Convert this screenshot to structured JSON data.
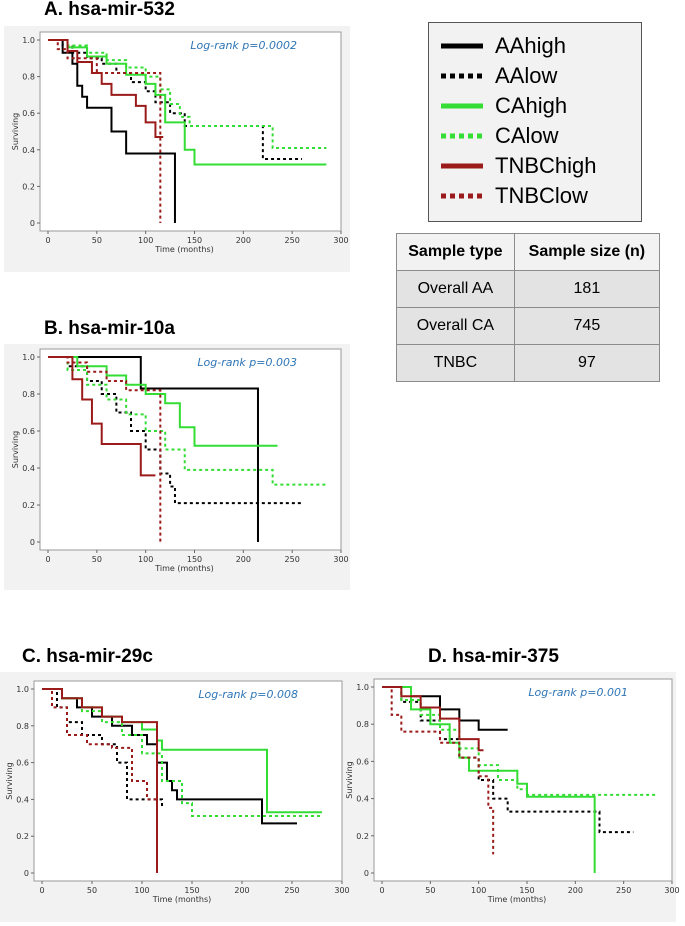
{
  "legend": [
    {
      "label": "AAhigh",
      "color": "#000000",
      "dash": false
    },
    {
      "label": "AAlow",
      "color": "#000000",
      "dash": true
    },
    {
      "label": "CAhigh",
      "color": "#33dd33",
      "dash": false
    },
    {
      "label": "CAlow",
      "color": "#33dd33",
      "dash": true
    },
    {
      "label": "TNBChigh",
      "color": "#9b1b1b",
      "dash": false
    },
    {
      "label": "TNBClow",
      "color": "#9b1b1b",
      "dash": true
    }
  ],
  "table": {
    "headers": [
      "Sample type",
      "Sample size (n)"
    ],
    "rows": [
      [
        "Overall AA",
        "181"
      ],
      [
        "Overall CA",
        "745"
      ],
      [
        "TNBC",
        "97"
      ]
    ]
  },
  "colors": {
    "AA": "#000000",
    "CA": "#33dd33",
    "TNBC": "#9b1b1b",
    "logrank": "#2e75b6"
  },
  "chart_data": [
    {
      "type": "line",
      "title": "A. hsa-mir-532",
      "annotation": "Log-rank p=0.0002",
      "xlabel": "Time (months)",
      "ylabel": "Surviving",
      "xlim": [
        0,
        300
      ],
      "ylim": [
        0,
        1
      ],
      "xticks": [
        0,
        50,
        100,
        150,
        200,
        250,
        300
      ],
      "yticks": [
        0,
        0.2,
        0.4,
        0.6,
        0.8,
        1.0
      ],
      "ytick_labels": [
        "0",
        "0.2",
        "0.4",
        "0.6",
        "0.8",
        "1.0"
      ],
      "series": [
        {
          "name": "AAhigh",
          "x": [
            0,
            15,
            25,
            30,
            35,
            40,
            50,
            65,
            80,
            100,
            110,
            130,
            130
          ],
          "y": [
            1,
            0.93,
            0.87,
            0.75,
            0.69,
            0.63,
            0.63,
            0.5,
            0.38,
            0.38,
            0.38,
            0.38,
            0
          ]
        },
        {
          "name": "AAlow",
          "x": [
            0,
            15,
            25,
            40,
            55,
            70,
            85,
            100,
            110,
            125,
            140,
            215,
            220,
            260
          ],
          "y": [
            1,
            0.97,
            0.93,
            0.9,
            0.87,
            0.82,
            0.77,
            0.72,
            0.66,
            0.6,
            0.53,
            0.53,
            0.35,
            0.35
          ]
        },
        {
          "name": "CAhigh",
          "x": [
            0,
            20,
            40,
            60,
            80,
            100,
            110,
            120,
            140,
            150,
            200,
            285
          ],
          "y": [
            1,
            0.96,
            0.91,
            0.87,
            0.81,
            0.76,
            0.7,
            0.55,
            0.4,
            0.32,
            0.32,
            0.32
          ]
        },
        {
          "name": "CAlow",
          "x": [
            0,
            20,
            40,
            60,
            80,
            100,
            115,
            125,
            135,
            145,
            220,
            230,
            285
          ],
          "y": [
            1,
            0.97,
            0.93,
            0.89,
            0.85,
            0.8,
            0.73,
            0.65,
            0.58,
            0.53,
            0.53,
            0.41,
            0.41
          ]
        },
        {
          "name": "TNBChigh",
          "x": [
            0,
            20,
            30,
            45,
            55,
            65,
            90,
            100,
            110,
            118
          ],
          "y": [
            1,
            0.94,
            0.88,
            0.82,
            0.76,
            0.7,
            0.64,
            0.55,
            0.47,
            0.47
          ]
        },
        {
          "name": "TNBClow",
          "x": [
            0,
            10,
            20,
            50,
            80,
            90,
            115,
            115
          ],
          "y": [
            1,
            0.95,
            0.9,
            0.82,
            0.82,
            0.82,
            0.82,
            0
          ]
        }
      ]
    },
    {
      "type": "line",
      "title": "B. hsa-mir-10a",
      "annotation": "Log-rank p=0.003",
      "xlabel": "Time (months)",
      "ylabel": "Surviving",
      "xlim": [
        0,
        300
      ],
      "ylim": [
        0,
        1
      ],
      "xticks": [
        0,
        50,
        100,
        150,
        200,
        250,
        300
      ],
      "yticks": [
        0,
        0.2,
        0.4,
        0.6,
        0.8,
        1.0
      ],
      "ytick_labels": [
        "0",
        "0.2",
        "0.4",
        "0.6",
        "0.8",
        "1.0"
      ],
      "series": [
        {
          "name": "AAhigh",
          "x": [
            0,
            90,
            95,
            215,
            215
          ],
          "y": [
            1,
            1,
            0.83,
            0.83,
            0
          ]
        },
        {
          "name": "AAlow",
          "x": [
            0,
            20,
            40,
            55,
            70,
            85,
            100,
            115,
            125,
            130,
            260
          ],
          "y": [
            1,
            0.95,
            0.87,
            0.8,
            0.7,
            0.6,
            0.5,
            0.37,
            0.3,
            0.21,
            0.21
          ]
        },
        {
          "name": "CAhigh",
          "x": [
            0,
            30,
            60,
            80,
            100,
            120,
            135,
            150,
            200,
            235
          ],
          "y": [
            1,
            0.95,
            0.9,
            0.85,
            0.8,
            0.75,
            0.62,
            0.52,
            0.52,
            0.52
          ]
        },
        {
          "name": "CAlow",
          "x": [
            0,
            20,
            40,
            60,
            80,
            100,
            120,
            140,
            220,
            230,
            285
          ],
          "y": [
            1,
            0.93,
            0.85,
            0.77,
            0.69,
            0.6,
            0.5,
            0.39,
            0.39,
            0.31,
            0.31
          ]
        },
        {
          "name": "TNBChigh",
          "x": [
            0,
            25,
            35,
            45,
            55,
            75,
            95,
            110
          ],
          "y": [
            1,
            0.88,
            0.77,
            0.64,
            0.53,
            0.53,
            0.36,
            0.36
          ]
        },
        {
          "name": "TNBClow",
          "x": [
            0,
            20,
            40,
            60,
            80,
            100,
            115,
            115
          ],
          "y": [
            1,
            0.97,
            0.92,
            0.87,
            0.82,
            0.82,
            0.82,
            0
          ]
        }
      ]
    },
    {
      "type": "line",
      "title": "C. hsa-mir-29c",
      "annotation": "Log-rank p=0.008",
      "xlabel": "Time (months)",
      "ylabel": "Surviving",
      "xlim": [
        0,
        300
      ],
      "ylim": [
        0,
        1
      ],
      "xticks": [
        0,
        50,
        100,
        150,
        200,
        250,
        300
      ],
      "yticks": [
        0,
        0.2,
        0.4,
        0.6,
        0.8,
        1.0
      ],
      "ytick_labels": [
        "0",
        "0.2",
        "0.4",
        "0.6",
        "0.8",
        "1.0"
      ],
      "series": [
        {
          "name": "AAhigh",
          "x": [
            0,
            20,
            35,
            50,
            70,
            90,
            105,
            115,
            125,
            130,
            135,
            215,
            220,
            255
          ],
          "y": [
            1,
            0.95,
            0.9,
            0.85,
            0.8,
            0.75,
            0.7,
            0.6,
            0.5,
            0.45,
            0.4,
            0.4,
            0.27,
            0.27
          ]
        },
        {
          "name": "AAlow",
          "x": [
            0,
            15,
            25,
            40,
            60,
            75,
            85,
            100,
            110,
            120
          ],
          "y": [
            1,
            0.9,
            0.82,
            0.75,
            0.7,
            0.6,
            0.4,
            0.4,
            0.4,
            0.35
          ]
        },
        {
          "name": "CAhigh",
          "x": [
            0,
            20,
            40,
            60,
            80,
            100,
            115,
            120,
            220,
            225,
            280
          ],
          "y": [
            1,
            0.95,
            0.9,
            0.85,
            0.82,
            0.78,
            0.72,
            0.67,
            0.67,
            0.33,
            0.33
          ]
        },
        {
          "name": "CAlow",
          "x": [
            0,
            20,
            40,
            60,
            80,
            100,
            120,
            140,
            150,
            280
          ],
          "y": [
            1,
            0.95,
            0.88,
            0.82,
            0.75,
            0.65,
            0.5,
            0.38,
            0.31,
            0.31
          ]
        },
        {
          "name": "TNBChigh",
          "x": [
            0,
            20,
            40,
            60,
            80,
            100,
            115,
            115
          ],
          "y": [
            1,
            0.95,
            0.9,
            0.85,
            0.82,
            0.82,
            0.82,
            0
          ]
        },
        {
          "name": "TNBClow",
          "x": [
            0,
            10,
            25,
            45,
            70,
            90,
            105,
            115
          ],
          "y": [
            1,
            0.9,
            0.75,
            0.7,
            0.68,
            0.5,
            0.4,
            0.35
          ]
        }
      ]
    },
    {
      "type": "line",
      "title": "D. hsa-mir-375",
      "annotation": "Log-rank p=0.001",
      "xlabel": "Time (months)",
      "ylabel": "Surviving",
      "xlim": [
        0,
        300
      ],
      "ylim": [
        0,
        1
      ],
      "xticks": [
        0,
        50,
        100,
        150,
        200,
        250,
        300
      ],
      "yticks": [
        0,
        0.2,
        0.4,
        0.6,
        0.8,
        1.0
      ],
      "ytick_labels": [
        "0",
        "0.2",
        "0.4",
        "0.6",
        "0.8",
        "1.0"
      ],
      "series": [
        {
          "name": "AAhigh",
          "x": [
            0,
            30,
            60,
            80,
            100,
            130
          ],
          "y": [
            1,
            0.95,
            0.88,
            0.82,
            0.77,
            0.77
          ]
        },
        {
          "name": "AAlow",
          "x": [
            0,
            20,
            40,
            60,
            80,
            100,
            115,
            130,
            220,
            225,
            260
          ],
          "y": [
            1,
            0.92,
            0.82,
            0.72,
            0.62,
            0.5,
            0.4,
            0.33,
            0.33,
            0.22,
            0.22
          ]
        },
        {
          "name": "CAhigh",
          "x": [
            0,
            30,
            50,
            70,
            80,
            90,
            110,
            140,
            150,
            220,
            220
          ],
          "y": [
            1,
            0.88,
            0.8,
            0.7,
            0.62,
            0.55,
            0.55,
            0.48,
            0.41,
            0.41,
            0
          ]
        },
        {
          "name": "CAlow",
          "x": [
            0,
            20,
            40,
            60,
            80,
            100,
            120,
            140,
            150,
            285
          ],
          "y": [
            1,
            0.93,
            0.85,
            0.77,
            0.67,
            0.58,
            0.5,
            0.45,
            0.42,
            0.42
          ]
        },
        {
          "name": "TNBChigh",
          "x": [
            0,
            20,
            40,
            60,
            80,
            100,
            105
          ],
          "y": [
            1,
            0.95,
            0.89,
            0.83,
            0.72,
            0.66,
            0.66
          ]
        },
        {
          "name": "TNBClow",
          "x": [
            0,
            10,
            20,
            35,
            60,
            80,
            100,
            110,
            115,
            115
          ],
          "y": [
            1,
            0.85,
            0.76,
            0.76,
            0.7,
            0.62,
            0.52,
            0.35,
            0.17,
            0.1
          ]
        }
      ]
    }
  ]
}
